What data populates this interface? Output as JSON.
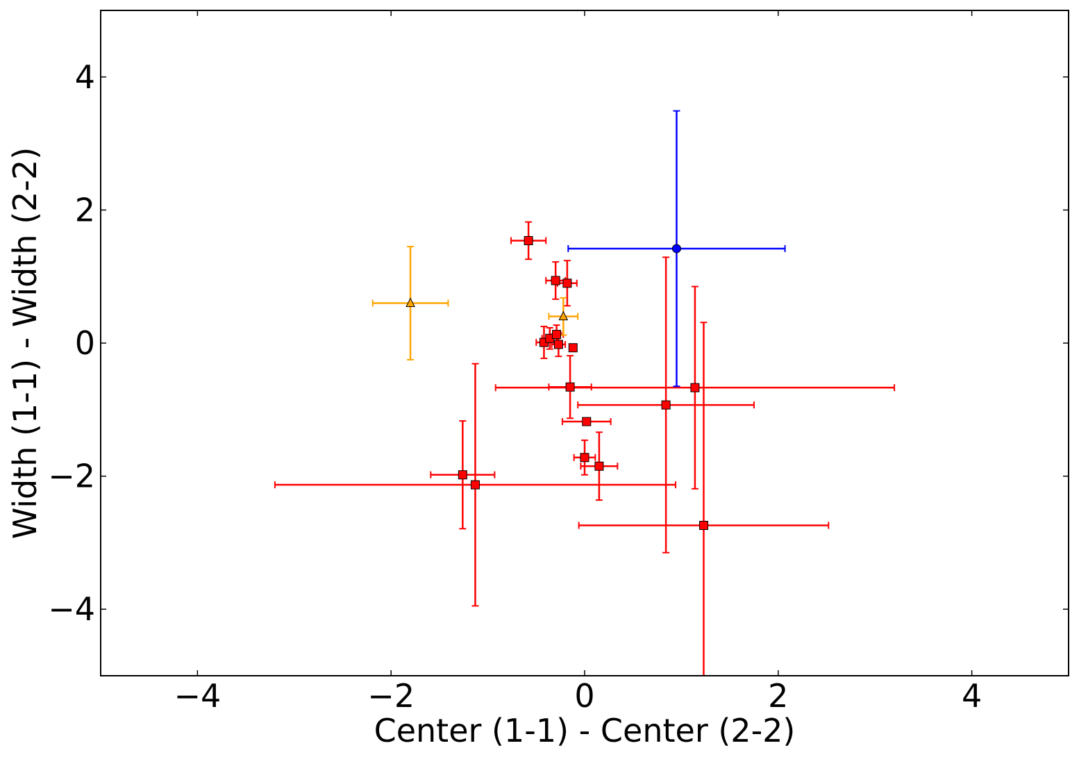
{
  "chart_data": {
    "type": "scatter",
    "title": "",
    "xlabel": "Center (1-1) - Center (2-2)",
    "ylabel": "Width (1-1) - Width (2-2)",
    "xlim": [
      -5,
      5
    ],
    "ylim": [
      -5,
      5
    ],
    "x_ticks": [
      -4,
      -2,
      0,
      2,
      4
    ],
    "y_ticks": [
      -4,
      -2,
      0,
      2,
      4
    ],
    "x_tick_labels": [
      "−4",
      "−2",
      "0",
      "2",
      "4"
    ],
    "y_tick_labels": [
      "−4",
      "−2",
      "0",
      "2",
      "4"
    ],
    "grid": false,
    "legend": false,
    "series": [
      {
        "marker": "square",
        "color": "#ff0000",
        "points": [
          {
            "x": -0.58,
            "y": 1.54,
            "xerr": 0.18,
            "yerr": 0.28
          },
          {
            "x": -0.3,
            "y": 0.94,
            "xerr": 0.1,
            "yerr": 0.28
          },
          {
            "x": -0.18,
            "y": 0.9,
            "xerr": 0.1,
            "yerr": 0.34
          },
          {
            "x": -0.42,
            "y": 0.01,
            "xerr": 0.08,
            "yerr": 0.24
          },
          {
            "x": -0.36,
            "y": 0.07,
            "xerr": 0.08,
            "yerr": 0.16
          },
          {
            "x": -0.29,
            "y": 0.13,
            "xerr": 0.07,
            "yerr": 0.14
          },
          {
            "x": -0.27,
            "y": -0.02,
            "xerr": 0.07,
            "yerr": 0.18
          },
          {
            "x": -0.12,
            "y": -0.07,
            "xerr": 0.0,
            "yerr": 0.0
          },
          {
            "x": -0.15,
            "y": -0.66,
            "xerr": 0.22,
            "yerr": 0.47
          },
          {
            "x": 1.14,
            "y": -0.67,
            "xerr": 2.06,
            "yerr": 1.52
          },
          {
            "x": 0.84,
            "y": -0.93,
            "xerr": 0.91,
            "yerr": 2.22
          },
          {
            "x": 0.02,
            "y": -1.18,
            "xerr": 0.25,
            "yerr": 0.0
          },
          {
            "x": 0.0,
            "y": -1.72,
            "xerr": 0.11,
            "yerr": 0.26
          },
          {
            "x": 0.15,
            "y": -1.85,
            "xerr": 0.19,
            "yerr": 0.51
          },
          {
            "x": -1.26,
            "y": -1.98,
            "xerr": 0.33,
            "yerr": 0.81
          },
          {
            "x": -1.13,
            "y": -2.13,
            "xerr": 2.07,
            "yerr": 1.82
          },
          {
            "x": 1.23,
            "y": -2.74,
            "xerr": 1.29,
            "yerr": 3.05
          }
        ]
      },
      {
        "marker": "triangle",
        "color": "#ffa500",
        "points": [
          {
            "x": -1.8,
            "y": 0.6,
            "xerr": 0.39,
            "yerr": 0.85
          },
          {
            "x": -0.22,
            "y": 0.4,
            "xerr": 0.15,
            "yerr": 0.28
          }
        ]
      },
      {
        "marker": "circle",
        "color": "#0000ff",
        "points": [
          {
            "x": 0.95,
            "y": 1.42,
            "xerr": 1.12,
            "yerr": 2.07
          }
        ]
      }
    ]
  }
}
